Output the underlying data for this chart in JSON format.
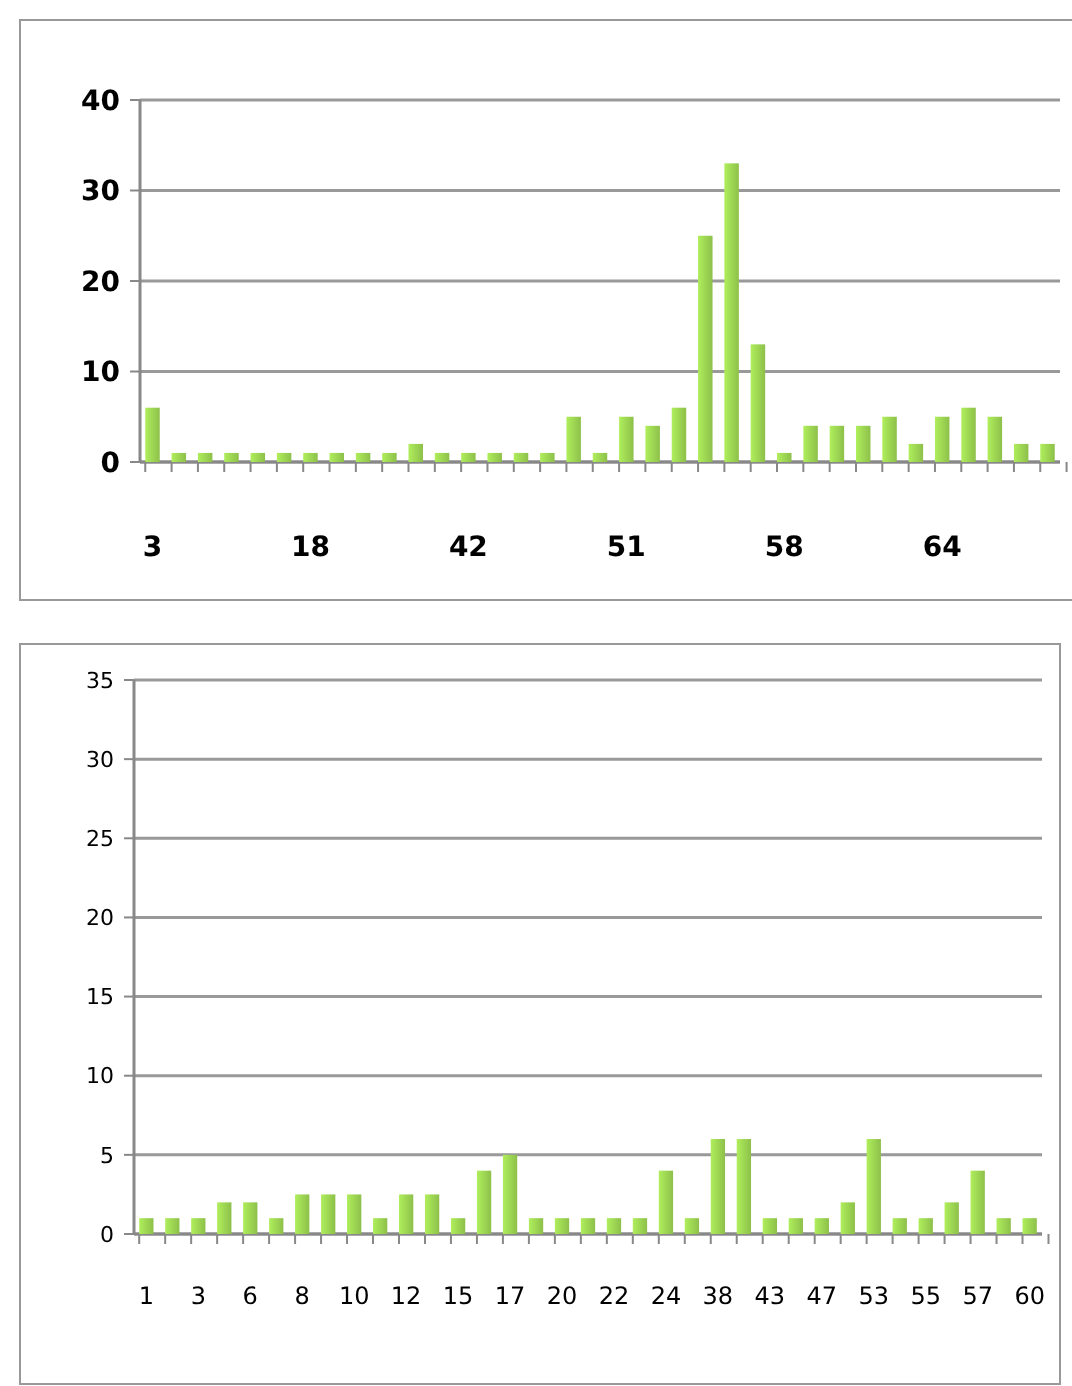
{
  "chart_data": [
    {
      "type": "bar",
      "categories": [
        "3",
        null,
        null,
        null,
        null,
        null,
        "18",
        null,
        null,
        null,
        null,
        null,
        "42",
        null,
        null,
        null,
        null,
        null,
        "51",
        null,
        null,
        null,
        null,
        null,
        "58",
        null,
        null,
        null,
        null,
        null,
        "64",
        null,
        null,
        null,
        null
      ],
      "values": [
        6,
        1,
        1,
        1,
        1,
        1,
        1,
        1,
        1,
        1,
        2,
        1,
        1,
        1,
        1,
        1,
        5,
        1,
        5,
        4,
        6,
        25,
        33,
        13,
        1,
        4,
        4,
        4,
        5,
        2,
        5,
        6,
        5,
        2,
        2
      ],
      "color": "#8dc04a",
      "ylim": [
        0,
        40
      ],
      "yticks": [
        0,
        10,
        20,
        30,
        40
      ],
      "grid": "y"
    },
    {
      "type": "bar",
      "categories": [
        "1",
        null,
        "3",
        null,
        "6",
        null,
        "8",
        null,
        "10",
        null,
        "12",
        null,
        "15",
        null,
        "17",
        null,
        "20",
        null,
        "22",
        null,
        "24",
        null,
        "38",
        null,
        "43",
        null,
        "47",
        null,
        "53",
        null,
        "55",
        null,
        "57",
        null,
        "60"
      ],
      "values": [
        1,
        1,
        1,
        2,
        2,
        1,
        2.5,
        2.5,
        2.5,
        1,
        2.5,
        2.5,
        1,
        4,
        5,
        1,
        1,
        1,
        1,
        1,
        4,
        1,
        6,
        6,
        1,
        1,
        1,
        2,
        6,
        1,
        1,
        2,
        4,
        1,
        1
      ],
      "color": "#8dc04a",
      "ylim": [
        0,
        35
      ],
      "yticks": [
        0,
        5,
        10,
        15,
        20,
        25,
        30,
        35
      ],
      "grid": "y"
    }
  ]
}
